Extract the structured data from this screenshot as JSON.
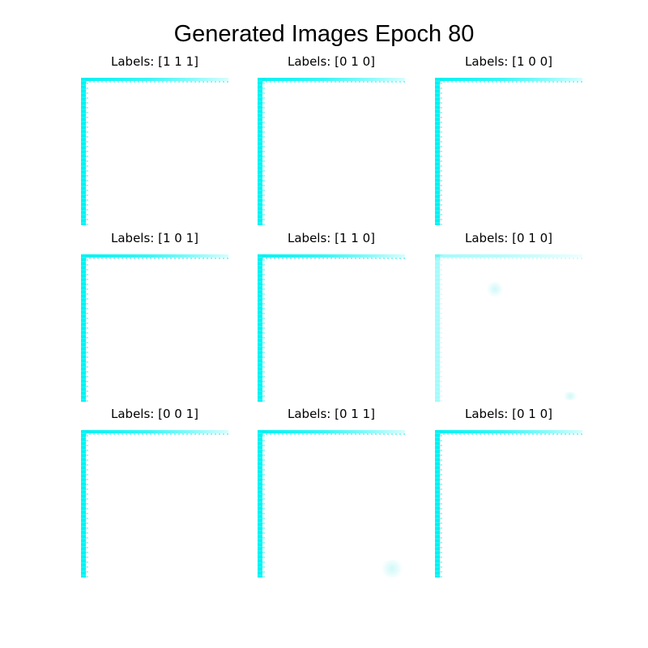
{
  "figure": {
    "title": "Generated Images Epoch 80"
  },
  "panels": [
    {
      "label": "Labels: [1 1 1]"
    },
    {
      "label": "Labels: [0 1 0]"
    },
    {
      "label": "Labels: [1 0 0]"
    },
    {
      "label": "Labels: [1 0 1]"
    },
    {
      "label": "Labels: [1 1 0]"
    },
    {
      "label": "Labels: [0 1 0]"
    },
    {
      "label": "Labels: [0 0 1]"
    },
    {
      "label": "Labels: [0 1 1]"
    },
    {
      "label": "Labels: [0 1 0]"
    }
  ],
  "colors": {
    "background": "#ffffff",
    "image_edge": "#00f2f2",
    "text": "#000000"
  }
}
